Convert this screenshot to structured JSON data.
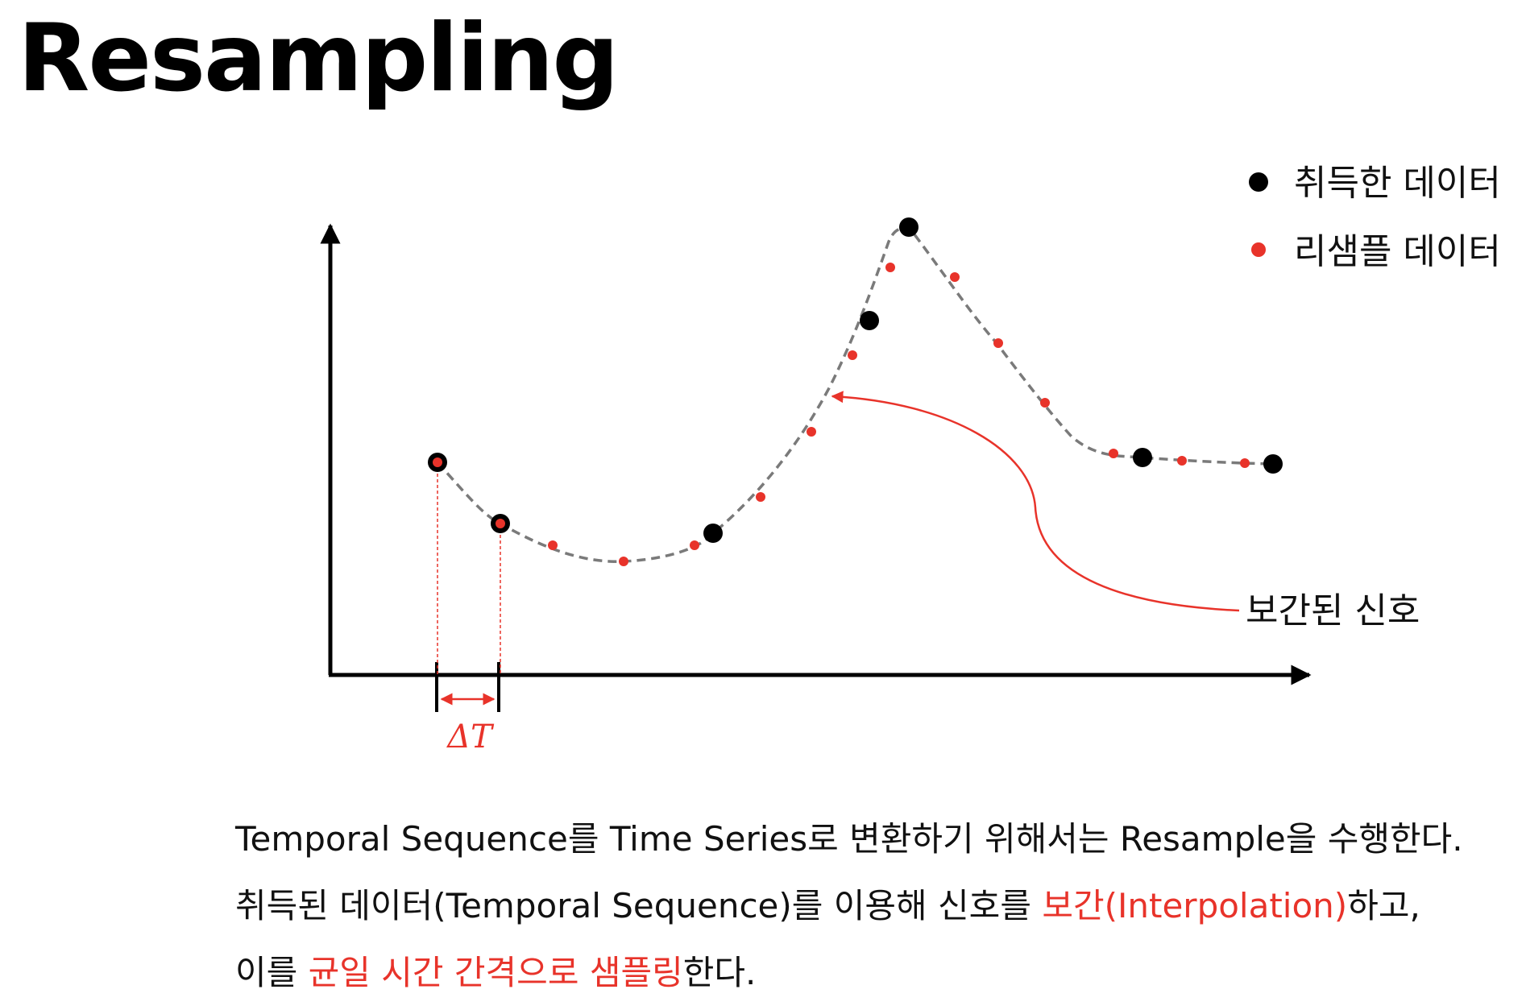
{
  "title": "Resampling",
  "colors": {
    "acquired": "#000000",
    "resampled": "#e8332a",
    "curve": "#7a7a7a",
    "highlight": "#e8332a"
  },
  "legend": {
    "acquired": "취득한 데이터",
    "resampled": "리샘플 데이터"
  },
  "annotation": "보간된 신호",
  "interval_label": "ΔT",
  "description": {
    "line1": "Temporal Sequence를 Time Series로 변환하기 위해서는 Resample을 수행한다.",
    "line2_a": "취득된 데이터(Temporal Sequence)를 이용해 신호를 ",
    "line2_b": "보간(Interpolation)",
    "line2_c": "하고,",
    "line3_a": "이를 ",
    "line3_b": "균일 시간 간격으로 샘플링",
    "line3_c": "한다."
  }
}
